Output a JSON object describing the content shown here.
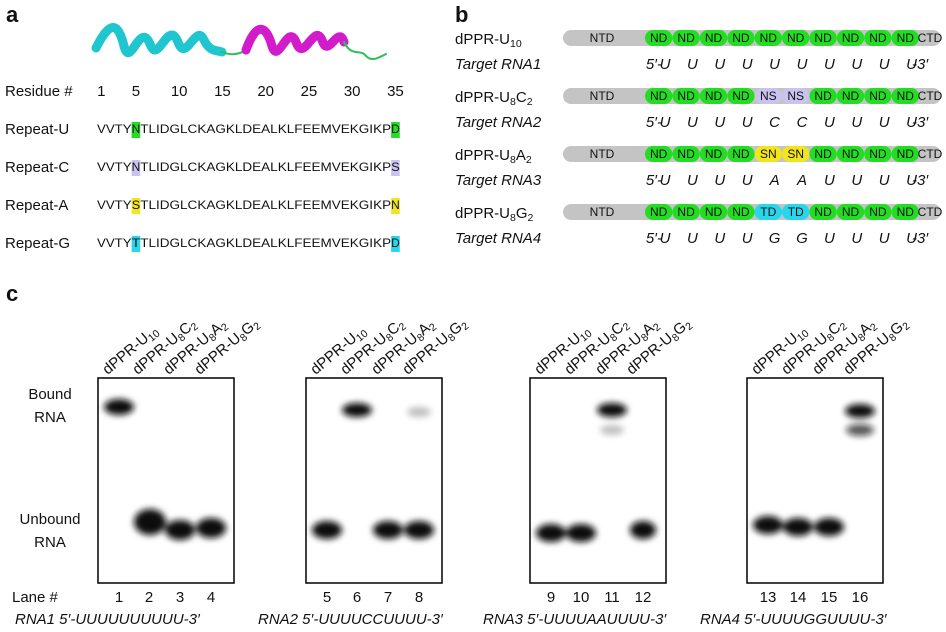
{
  "panel_a": {
    "label": "a",
    "residue_label": "Residue #",
    "residue_numbers": [
      1,
      5,
      10,
      15,
      20,
      25,
      30,
      35
    ],
    "repeats": [
      {
        "name": "Repeat-U",
        "sequence": [
          "VVTY",
          "N",
          "TLIDGLCKAGKLDEALKLFEEMVEKGIKP",
          "D"
        ],
        "color": "#22dd22"
      },
      {
        "name": "Repeat-C",
        "sequence": [
          "VVTY",
          "N",
          "TLIDGLCKAGKLDEALKLFEEMVEKGIKP",
          "S"
        ],
        "color": "#cbc3ef"
      },
      {
        "name": "Repeat-A",
        "sequence": [
          "VVTY",
          "S",
          "TLIDGLCKAGKLDEALKLFEEMVEKGIKP",
          "N"
        ],
        "color": "#f2e51c"
      },
      {
        "name": "Repeat-G",
        "sequence": [
          "VVTY",
          "T",
          "TLIDGLCKAGKLDEALKLFEEMVEKGIKP",
          "D"
        ],
        "color": "#27d6ea"
      }
    ]
  },
  "panel_b": {
    "label": "b",
    "domain_colors": {
      "NTD": "#c4c4c4",
      "CTD": "#c4c4c4",
      "ND": "#22dd22",
      "NS": "#cbc3ef",
      "SN": "#f2e51c",
      "TD": "#27d6ea"
    },
    "constructs": [
      {
        "name": [
          "dPPR-U",
          "10"
        ],
        "domains": [
          "NTD",
          "ND",
          "ND",
          "ND",
          "ND",
          "ND",
          "ND",
          "ND",
          "ND",
          "ND",
          "ND",
          "CTD"
        ],
        "target": "Target RNA1",
        "rna": [
          "5′-",
          "U",
          "U",
          "U",
          "U",
          "U",
          "U",
          "U",
          "U",
          "U",
          "U",
          "-3′"
        ]
      },
      {
        "name": [
          "dPPR-U",
          "8",
          "C",
          "2"
        ],
        "domains": [
          "NTD",
          "ND",
          "ND",
          "ND",
          "ND",
          "NS",
          "NS",
          "ND",
          "ND",
          "ND",
          "ND",
          "CTD"
        ],
        "target": "Target RNA2",
        "rna": [
          "5′-",
          "U",
          "U",
          "U",
          "U",
          "C",
          "C",
          "U",
          "U",
          "U",
          "U",
          "-3′"
        ]
      },
      {
        "name": [
          "dPPR-U",
          "8",
          "A",
          "2"
        ],
        "domains": [
          "NTD",
          "ND",
          "ND",
          "ND",
          "ND",
          "SN",
          "SN",
          "ND",
          "ND",
          "ND",
          "ND",
          "CTD"
        ],
        "target": "Target RNA3",
        "rna": [
          "5′-",
          "U",
          "U",
          "U",
          "U",
          "A",
          "A",
          "U",
          "U",
          "U",
          "U",
          "-3′"
        ]
      },
      {
        "name": [
          "dPPR-U",
          "8",
          "G",
          "2"
        ],
        "domains": [
          "NTD",
          "ND",
          "ND",
          "ND",
          "ND",
          "TD",
          "TD",
          "ND",
          "ND",
          "ND",
          "ND",
          "CTD"
        ],
        "target": "Target RNA4",
        "rna": [
          "5′-",
          "U",
          "U",
          "U",
          "U",
          "G",
          "G",
          "U",
          "U",
          "U",
          "U",
          "-3′"
        ]
      }
    ]
  },
  "panel_c": {
    "label": "c",
    "bound_label": [
      "Bound",
      "RNA"
    ],
    "unbound_label": [
      "Unbound",
      "RNA"
    ],
    "lane_label": "Lane #",
    "gels": [
      {
        "lanes": [
          {
            "name": [
              "dPPR-U",
              "10"
            ],
            "number": 1
          },
          {
            "name": [
              "dPPR-U",
              "8",
              "C",
              "2"
            ],
            "number": 2
          },
          {
            "name": [
              "dPPR-U",
              "8",
              "A",
              "2"
            ],
            "number": 3
          },
          {
            "name": [
              "dPPR-U",
              "8",
              "G",
              "2"
            ],
            "number": 4
          }
        ],
        "caption": "RNA1 5′-UUUUUUUUUU-3′"
      },
      {
        "lanes": [
          {
            "name": [
              "dPPR-U",
              "10"
            ],
            "number": 5
          },
          {
            "name": [
              "dPPR-U",
              "8",
              "C",
              "2"
            ],
            "number": 6
          },
          {
            "name": [
              "dPPR-U",
              "8",
              "A",
              "2"
            ],
            "number": 7
          },
          {
            "name": [
              "dPPR-U",
              "8",
              "G",
              "2"
            ],
            "number": 8
          }
        ],
        "caption": "RNA2 5′-UUUUCCUUUU-3′"
      },
      {
        "lanes": [
          {
            "name": [
              "dPPR-U",
              "10"
            ],
            "number": 9
          },
          {
            "name": [
              "dPPR-U",
              "8",
              "C",
              "2"
            ],
            "number": 10
          },
          {
            "name": [
              "dPPR-U",
              "8",
              "A",
              "2"
            ],
            "number": 11
          },
          {
            "name": [
              "dPPR-U",
              "8",
              "G",
              "2"
            ],
            "number": 12
          }
        ],
        "caption": "RNA3 5′-UUUUAAUUUU-3′"
      },
      {
        "lanes": [
          {
            "name": [
              "dPPR-U",
              "10"
            ],
            "number": 13
          },
          {
            "name": [
              "dPPR-U",
              "8",
              "C",
              "2"
            ],
            "number": 14
          },
          {
            "name": [
              "dPPR-U",
              "8",
              "A",
              "2"
            ],
            "number": 15
          },
          {
            "name": [
              "dPPR-U",
              "8",
              "G",
              "2"
            ],
            "number": 16
          }
        ],
        "caption": "RNA4 5′-UUUUGGUUUU-3′"
      }
    ]
  }
}
